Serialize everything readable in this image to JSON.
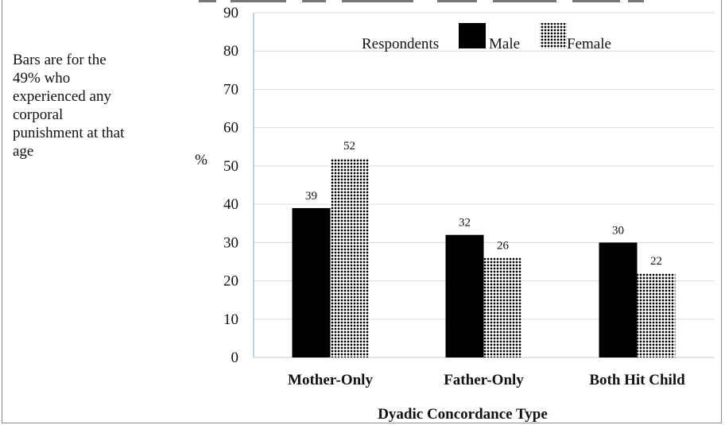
{
  "annotation": "Bars are for the\n49%  who\nexperienced any\ncorporal\npunishment at that\nage",
  "colors": {
    "male": "#000000",
    "female_dot": "#000000",
    "female_bg": "#ffffff",
    "axis": "#9dc3e6",
    "grid": "#d9d9d9"
  },
  "chart_data": {
    "type": "bar",
    "title": "",
    "xlabel": "Dyadic Concordance Type",
    "ylabel": "%",
    "ylim": [
      0,
      90
    ],
    "yticks": [
      0,
      10,
      20,
      30,
      40,
      50,
      60,
      70,
      80,
      90
    ],
    "grid": true,
    "categories": [
      "Mother-Only",
      "Father-Only",
      "Both Hit Child"
    ],
    "legend": {
      "title": "Respondents",
      "placement": "top-center",
      "entries": [
        "Male",
        "Female"
      ]
    },
    "series": [
      {
        "name": "Male",
        "values": [
          39,
          32,
          30
        ],
        "labels": [
          "39",
          "32",
          "30"
        ]
      },
      {
        "name": "Female",
        "values": [
          52,
          26,
          22
        ],
        "labels": [
          "52",
          "26",
          "22"
        ]
      }
    ]
  }
}
